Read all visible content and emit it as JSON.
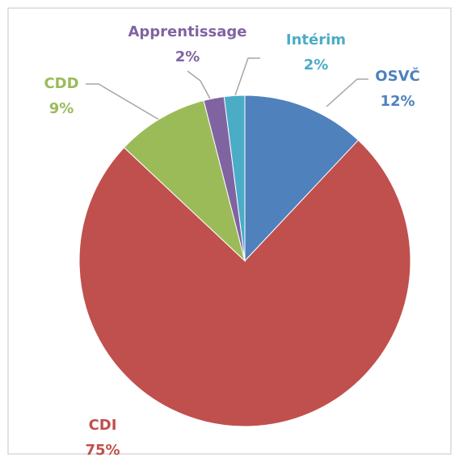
{
  "chart_data": {
    "type": "pie",
    "categories": [
      "OSVČ",
      "CDI",
      "CDD",
      "Apprentissage",
      "Intérim"
    ],
    "values": [
      12,
      75,
      9,
      2,
      2
    ],
    "value_labels": [
      "12%",
      "75%",
      "9%",
      "2%",
      "2%"
    ],
    "colors": [
      "#4f81bd",
      "#c0504d",
      "#9bbb59",
      "#8064a2",
      "#4bacc6"
    ]
  }
}
